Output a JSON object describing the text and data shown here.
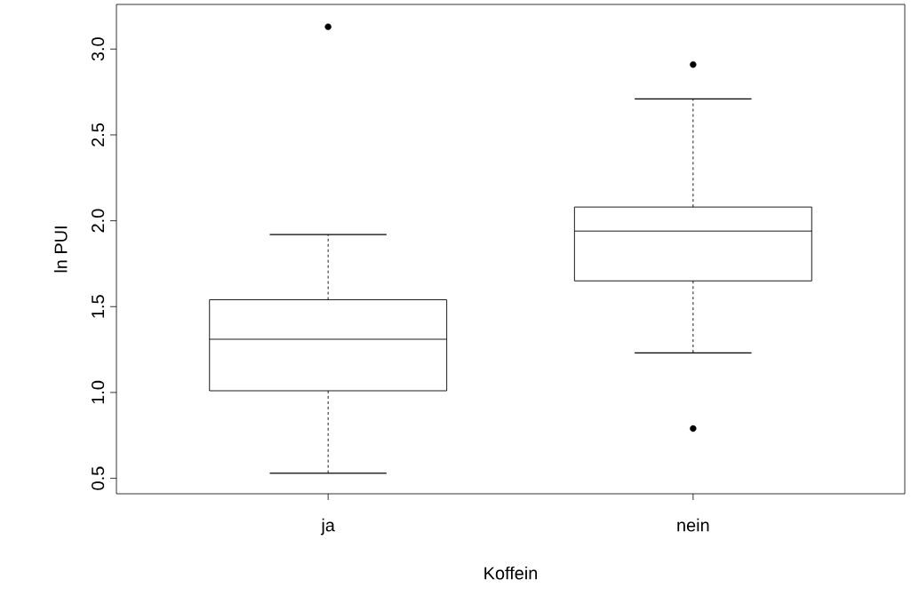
{
  "chart_data": {
    "type": "box",
    "xlabel": "Koffein",
    "ylabel": "ln PUI",
    "categories": [
      "ja",
      "nein"
    ],
    "boxes": [
      {
        "low": 0.53,
        "q1": 1.01,
        "median": 1.31,
        "q3": 1.54,
        "high": 1.92,
        "outliers": [
          3.13
        ]
      },
      {
        "low": 1.23,
        "q1": 1.65,
        "median": 1.94,
        "q3": 2.08,
        "high": 2.71,
        "outliers": [
          2.91,
          0.79
        ]
      }
    ],
    "ylim": [
      0.41,
      3.26
    ],
    "yticks": [
      0.5,
      {
        "value": 1,
        "label": "1.0"
      },
      1.5,
      {
        "value": 2,
        "label": "2.0"
      },
      2.5,
      {
        "value": 3,
        "label": "3.0"
      }
    ],
    "grid": false
  }
}
